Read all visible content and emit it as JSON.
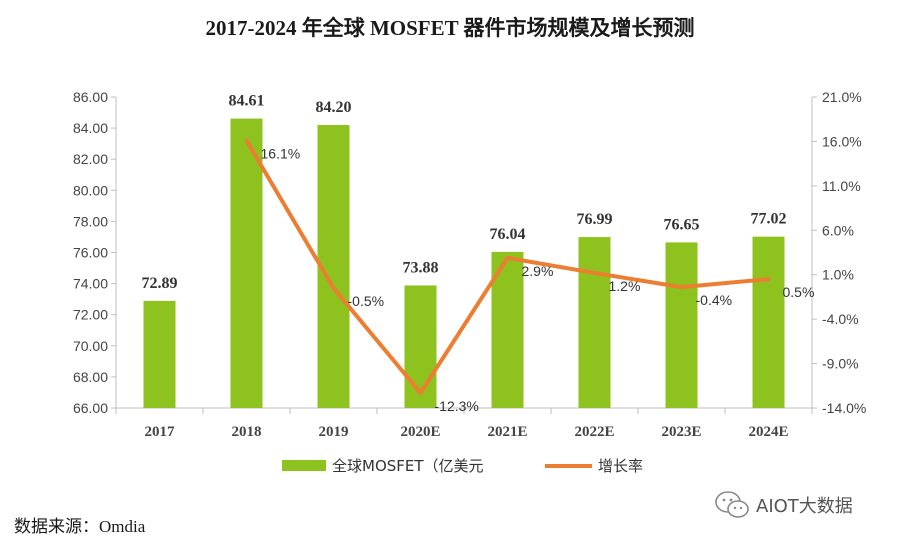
{
  "title": "2017-2024 年全球 MOSFET 器件市场规模及增长预测",
  "source": "数据来源：Omdia",
  "watermark": "AIOT大数据",
  "colors": {
    "bar": "#8dc21f",
    "line": "#ed7d31",
    "axis": "#bfbfbf"
  },
  "chart_data": {
    "type": "bar",
    "categories": [
      "2017",
      "2018",
      "2019",
      "2020E",
      "2021E",
      "2022E",
      "2023E",
      "2024E"
    ],
    "series": [
      {
        "name": "全球MOSFET（亿美元",
        "type": "bar",
        "axis": "left",
        "values": [
          72.89,
          84.61,
          84.2,
          73.88,
          76.04,
          76.99,
          76.65,
          77.02
        ],
        "labels": [
          "72.89",
          "84.61",
          "84.20",
          "73.88",
          "76.04",
          "76.99",
          "76.65",
          "77.02"
        ]
      },
      {
        "name": "增长率",
        "type": "line",
        "axis": "right",
        "values": [
          null,
          16.1,
          -0.5,
          -12.3,
          2.9,
          1.2,
          -0.4,
          0.5
        ],
        "labels": [
          "",
          "16.1%",
          "-0.5%",
          "-12.3%",
          "2.9%",
          "1.2%",
          "-0.4%",
          "0.5%"
        ]
      }
    ],
    "y_left": {
      "min": 66,
      "max": 86,
      "step": 2,
      "ticks": [
        "66.00",
        "68.00",
        "70.00",
        "72.00",
        "74.00",
        "76.00",
        "78.00",
        "80.00",
        "82.00",
        "84.00",
        "86.00"
      ]
    },
    "y_right": {
      "min": -14,
      "max": 21,
      "step": 5,
      "ticks": [
        "-14.0%",
        "-9.0%",
        "-4.0%",
        "1.0%",
        "6.0%",
        "11.0%",
        "16.0%",
        "21.0%"
      ]
    },
    "grid": false,
    "legend": "bottom-center"
  }
}
